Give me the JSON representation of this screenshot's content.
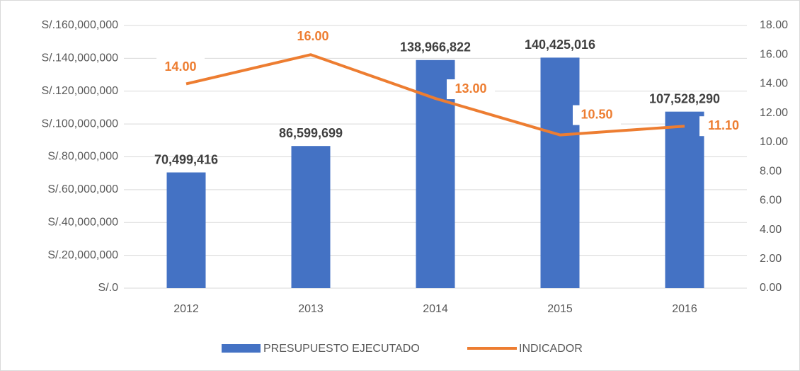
{
  "chart_data": {
    "type": "bar",
    "categories": [
      "2012",
      "2013",
      "2014",
      "2015",
      "2016"
    ],
    "series": [
      {
        "name": "PRESUPUESTO EJECUTADO",
        "type": "bar",
        "color": "#4472c4",
        "values": [
          70499416,
          86599699,
          138966822,
          140425016,
          107528290
        ],
        "value_labels": [
          "70,499,416",
          "86,599,699",
          "138,966,822",
          "140,425,016",
          "107,528,290"
        ]
      },
      {
        "name": "INDICADOR",
        "type": "line",
        "axis": "y2",
        "color": "#ed7d31",
        "values": [
          14,
          16,
          13,
          10.5,
          11.1
        ],
        "value_labels": [
          "14.00",
          "16.00",
          "13.00",
          "10.50",
          "11.10"
        ]
      }
    ],
    "ylim": [
      0,
      160000000
    ],
    "yticks": [
      {
        "value": 0,
        "label": "S/.0"
      },
      {
        "value": 20000000,
        "label": "S/.20,000,000"
      },
      {
        "value": 40000000,
        "label": "S/.40,000,000"
      },
      {
        "value": 60000000,
        "label": "S/.60,000,000"
      },
      {
        "value": 80000000,
        "label": "S/.80,000,000"
      },
      {
        "value": 100000000,
        "label": "S/.100,000,000"
      },
      {
        "value": 120000000,
        "label": "S/.120,000,000"
      },
      {
        "value": 140000000,
        "label": "S/.140,000,000"
      },
      {
        "value": 160000000,
        "label": "S/.160,000,000"
      }
    ],
    "y2lim": [
      0,
      18
    ],
    "y2ticks": [
      {
        "value": 0,
        "label": "0.00"
      },
      {
        "value": 2,
        "label": "2.00"
      },
      {
        "value": 4,
        "label": "4.00"
      },
      {
        "value": 6,
        "label": "6.00"
      },
      {
        "value": 8,
        "label": "8.00"
      },
      {
        "value": 10,
        "label": "10.00"
      },
      {
        "value": 12,
        "label": "12.00"
      },
      {
        "value": 14,
        "label": "14.00"
      },
      {
        "value": 16,
        "label": "16.00"
      },
      {
        "value": 18,
        "label": "18.00"
      }
    ],
    "grid": true,
    "legend": "bottom"
  }
}
